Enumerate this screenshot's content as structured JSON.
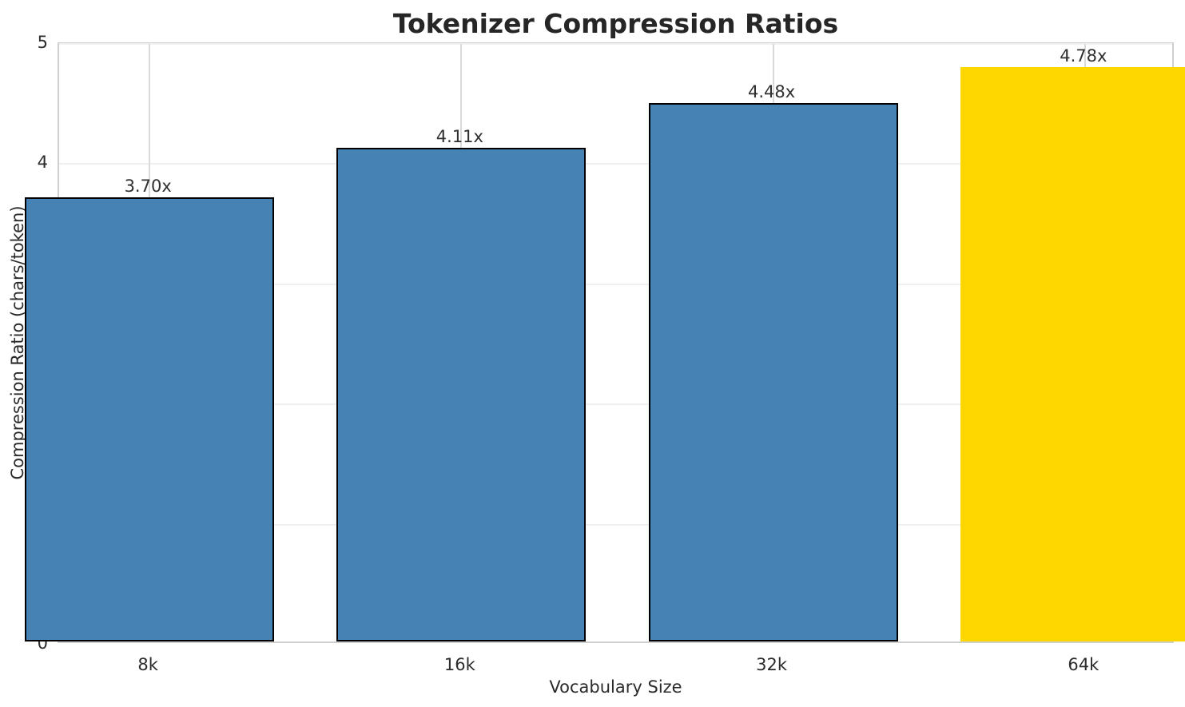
{
  "chart_data": {
    "type": "bar",
    "title": "Tokenizer Compression Ratios",
    "xlabel": "Vocabulary Size",
    "ylabel": "Compression Ratio (chars/token)",
    "categories": [
      "8k",
      "16k",
      "32k",
      "64k"
    ],
    "values": [
      3.7,
      4.11,
      4.48,
      4.78
    ],
    "bar_labels": [
      "3.70x",
      "4.11x",
      "4.48x",
      "4.78x"
    ],
    "bar_colors": [
      "#4682B4",
      "#4682B4",
      "#4682B4",
      "#FFD700"
    ],
    "bar_edge_colors": [
      "#000000",
      "#000000",
      "#000000",
      "transparent"
    ],
    "ylim": [
      0,
      5
    ],
    "yticks": [
      0,
      1,
      2,
      3,
      4,
      5
    ],
    "bar_width_fraction": 0.8,
    "grid": "both",
    "legend": "none"
  },
  "colors": {
    "background": "#ffffff",
    "text": "#262626",
    "grid_horizontal": "#f0f0f0",
    "grid_vertical": "#d9d9d9",
    "spine": "#cfcfcf",
    "accent_blue": "#4682B4",
    "accent_gold": "#FFD700"
  }
}
